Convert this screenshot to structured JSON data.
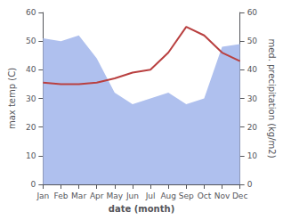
{
  "chart_data": {
    "type": "line",
    "xlabel": "date (month)",
    "ylabel": "max temp (C)",
    "y2label": "med. precipitation (kg/m2)",
    "categories": [
      "Jan",
      "Feb",
      "Mar",
      "Apr",
      "May",
      "Jun",
      "Jul",
      "Aug",
      "Sep",
      "Oct",
      "Nov",
      "Dec"
    ],
    "series": [
      {
        "type": "area",
        "color": "#afc0ee",
        "axis": "y2",
        "values": [
          51,
          50,
          52,
          44,
          32,
          28,
          30,
          32,
          28,
          30,
          48,
          49
        ]
      },
      {
        "type": "line",
        "color": "#b94040",
        "values": [
          35.5,
          35,
          35,
          35.5,
          37,
          39,
          40,
          46,
          55,
          52,
          46,
          43
        ]
      }
    ],
    "ylim": [
      0,
      60
    ],
    "yticks": [
      0,
      10,
      20,
      30,
      40,
      50,
      60
    ],
    "y2lim": [
      0,
      60
    ],
    "y2ticks": [
      0,
      10,
      20,
      30,
      40,
      50,
      60
    ],
    "grid": false
  }
}
